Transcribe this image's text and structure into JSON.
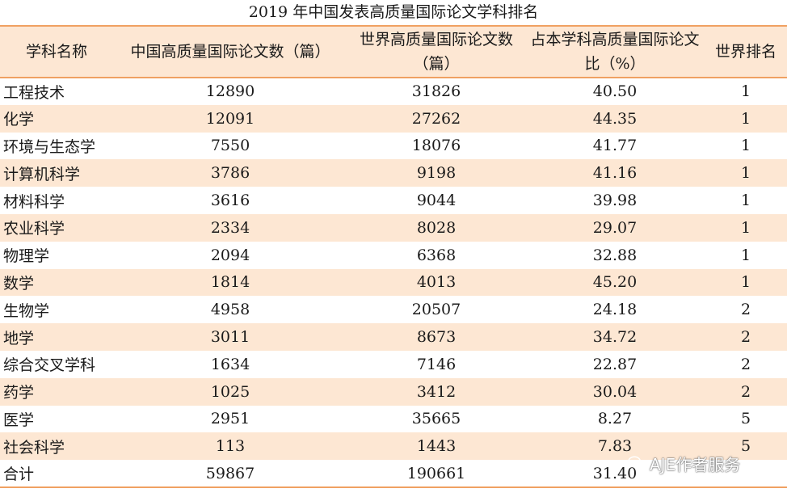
{
  "title": "2019 年中国发表高质量国际论文学科排名",
  "table": {
    "headers": [
      "学科名称",
      "中国高质量国际论文数（篇）",
      "世界高质量国际论文数（篇）",
      "占本学科高质量国际论文比（%）",
      "世界排名"
    ],
    "rows": [
      [
        "工程技术",
        "12890",
        "31826",
        "40.50",
        "1"
      ],
      [
        "化学",
        "12091",
        "27262",
        "44.35",
        "1"
      ],
      [
        "环境与生态学",
        "7550",
        "18076",
        "41.77",
        "1"
      ],
      [
        "计算机科学",
        "3786",
        "9198",
        "41.16",
        "1"
      ],
      [
        "材料科学",
        "3616",
        "9044",
        "39.98",
        "1"
      ],
      [
        "农业科学",
        "2334",
        "8028",
        "29.07",
        "1"
      ],
      [
        "物理学",
        "2094",
        "6368",
        "32.88",
        "1"
      ],
      [
        "数学",
        "1814",
        "4013",
        "45.20",
        "1"
      ],
      [
        "生物学",
        "4958",
        "20507",
        "24.18",
        "2"
      ],
      [
        "地学",
        "3011",
        "8673",
        "34.72",
        "2"
      ],
      [
        "综合交叉学科",
        "1634",
        "7146",
        "22.87",
        "2"
      ],
      [
        "药学",
        "1025",
        "3412",
        "30.04",
        "2"
      ],
      [
        "医学",
        "2951",
        "35665",
        "8.27",
        "5"
      ],
      [
        "社会科学",
        "113",
        "1443",
        "7.83",
        "5"
      ],
      [
        "合计",
        "59867",
        "190661",
        "31.40",
        ""
      ]
    ]
  },
  "watermark": {
    "text": "AJE作者服务",
    "icon": "wechat-icon"
  },
  "colors": {
    "accent_border": "#f0a162",
    "shaded_row": "#fde7d3"
  }
}
